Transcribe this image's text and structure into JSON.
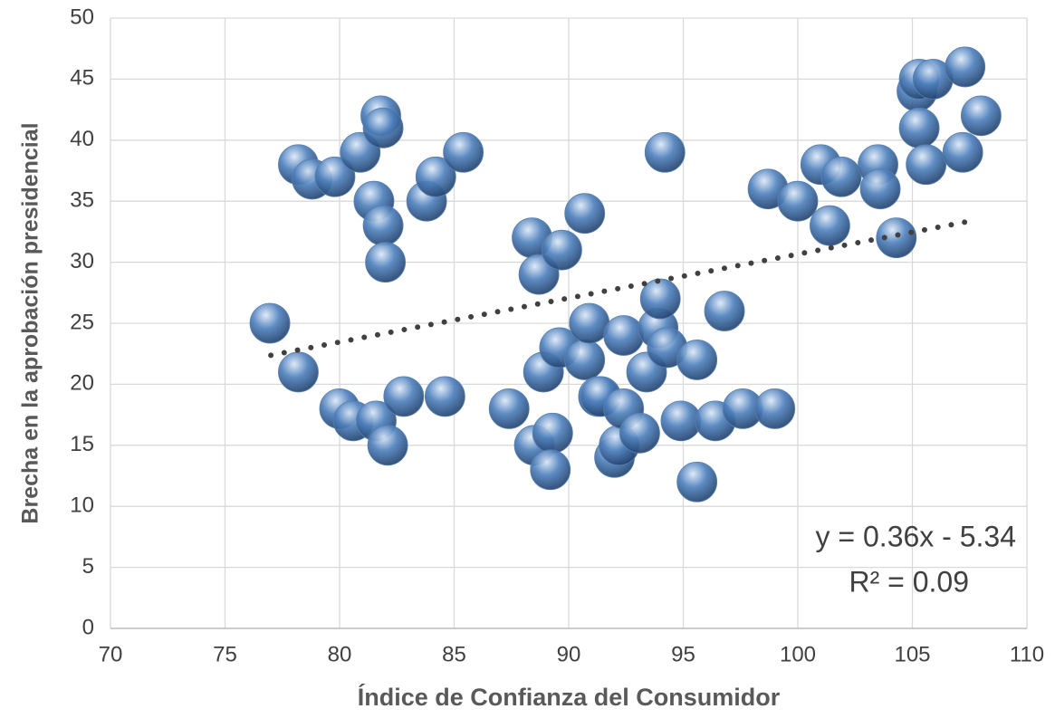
{
  "chart_data": {
    "type": "scatter",
    "x_label": "Índice de Confianza del Consumidor",
    "y_label": "Brecha en la aprobación presidencial",
    "x": [
      76.96,
      78.2,
      78.2,
      78.8,
      79.8,
      80.0,
      80.6,
      80.9,
      81.5,
      81.6,
      81.8,
      81.9,
      81.9,
      82.0,
      82.1,
      82.8,
      83.8,
      84.2,
      84.6,
      85.4,
      87.4,
      88.4,
      88.5,
      88.7,
      88.9,
      89.3,
      89.2,
      89.6,
      89.7,
      90.7,
      90.7,
      90.9,
      91.3,
      91.4,
      92.0,
      92.2,
      92.4,
      92.4,
      93.1,
      93.4,
      93.9,
      94.0,
      94.3,
      94.2,
      94.9,
      95.6,
      95.6,
      96.4,
      96.8,
      97.6,
      98.7,
      99.0,
      100.0,
      101.0,
      101.4,
      101.9,
      103.5,
      103.6,
      104.3,
      105.2,
      105.3,
      105.3,
      105.6,
      105.9,
      107.2,
      107.3,
      108.0
    ],
    "values": [
      25,
      21,
      38,
      36.8,
      37,
      18,
      17,
      39,
      35,
      17,
      42,
      41,
      33,
      30,
      15,
      19,
      35,
      37,
      19,
      39,
      18,
      32,
      15,
      29,
      21,
      16,
      13,
      23,
      31,
      34,
      22,
      25,
      19,
      19,
      14,
      15,
      18,
      24,
      16,
      21,
      24.6,
      27,
      23,
      39,
      17,
      22,
      12,
      17,
      26,
      18,
      36,
      18,
      35,
      38,
      33,
      37,
      38,
      36,
      32,
      44,
      45,
      41,
      38,
      45,
      39,
      46,
      42
    ],
    "color": "#4f81bd",
    "xlim": [
      70,
      110
    ],
    "xticks": [
      70,
      75,
      80,
      85,
      90,
      95,
      100,
      105,
      110
    ],
    "ylim": [
      0,
      50
    ],
    "yticks": [
      0,
      5,
      10,
      15,
      20,
      25,
      30,
      35,
      40,
      45,
      50
    ],
    "grid": true,
    "trendline": {
      "x_range": [
        77,
        107.4
      ],
      "slope": 0.36,
      "intercept": -5.34,
      "equation": "y = 0.36x - 5.34",
      "r_squared": "R² = 0.09"
    }
  }
}
